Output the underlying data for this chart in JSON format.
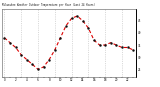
{
  "hours": [
    0,
    1,
    2,
    3,
    4,
    5,
    6,
    7,
    8,
    9,
    10,
    11,
    12,
    13,
    14,
    15,
    16,
    17,
    18,
    19,
    20,
    21,
    22,
    23
  ],
  "temps": [
    38,
    36,
    34,
    31,
    29,
    27,
    25,
    26,
    29,
    33,
    38,
    43,
    46,
    47,
    45,
    42,
    37,
    35,
    35,
    36,
    35,
    34,
    34,
    33
  ],
  "line_color": "#dd0000",
  "marker_color": "#111111",
  "bg_color": "#ffffff",
  "grid_color": "#aaaaaa",
  "ylim": [
    22,
    50
  ],
  "yticks": [
    25,
    30,
    35,
    40,
    45
  ],
  "ytick_labels": [
    "25",
    "30",
    "35",
    "40",
    "45"
  ],
  "title": "Milwaukee Weather Outdoor Temperature per Hour (Last 24 Hours)"
}
